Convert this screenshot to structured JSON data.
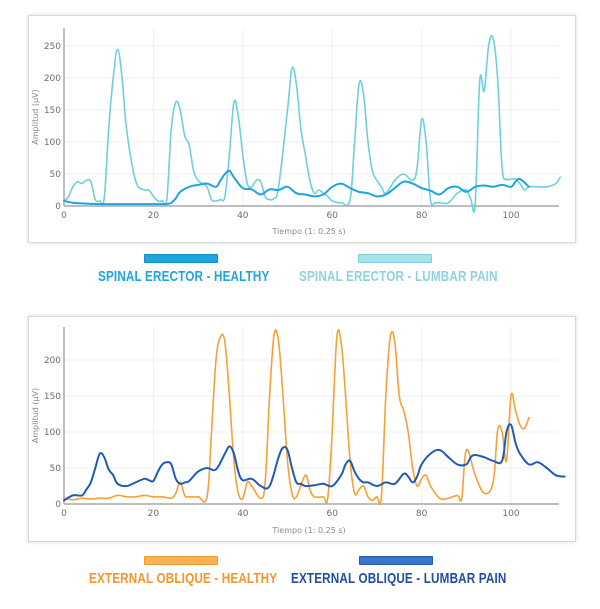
{
  "chart_data": [
    {
      "type": "line",
      "title": "",
      "xlabel": "Tiempo (1: 0.25 s)",
      "ylabel": "Amplitud (µV)",
      "xlim": [
        0,
        112
      ],
      "ylim": [
        0,
        270
      ],
      "xticks": [
        0,
        20,
        40,
        60,
        80,
        100
      ],
      "yticks": [
        0,
        50,
        100,
        150,
        200,
        250
      ],
      "grid": true,
      "legend_position": "bottom",
      "series": [
        {
          "name": "SPINAL ERECTOR - HEALTHY",
          "color": "#1ea4e0",
          "x": [
            0,
            2,
            4,
            8,
            12,
            16,
            20,
            22,
            23,
            24,
            25,
            26,
            28,
            30,
            32,
            34,
            35,
            36,
            37,
            38,
            40,
            42,
            44,
            46,
            48,
            50,
            52,
            54,
            56,
            58,
            60,
            62,
            64,
            66,
            68,
            70,
            72,
            74,
            76,
            78,
            80,
            82,
            84,
            86,
            88,
            90,
            92,
            94,
            96,
            98,
            100,
            101,
            102,
            104
          ],
          "values": [
            8,
            5,
            4,
            3,
            3,
            3,
            3,
            3,
            3,
            5,
            12,
            22,
            30,
            33,
            35,
            30,
            40,
            50,
            55,
            45,
            28,
            26,
            18,
            26,
            25,
            30,
            20,
            18,
            15,
            18,
            30,
            35,
            28,
            22,
            20,
            15,
            18,
            28,
            38,
            35,
            28,
            24,
            18,
            28,
            30,
            22,
            30,
            32,
            30,
            33,
            30,
            38,
            42,
            30
          ]
        },
        {
          "name": "SPINAL ERECTOR - LUMBAR PAIN",
          "color": "#6fd0dd",
          "x": [
            0,
            1,
            2,
            3,
            4,
            5,
            6,
            7,
            8,
            9,
            10,
            11,
            12,
            13,
            14,
            16,
            18,
            19,
            20,
            21,
            22,
            23,
            24,
            25,
            26,
            27,
            28,
            29,
            30,
            31,
            32,
            33,
            34,
            35,
            36,
            37,
            38,
            39,
            40,
            41,
            42,
            43,
            44,
            45,
            46,
            47,
            48,
            50,
            51,
            52,
            53,
            54,
            55,
            56,
            57,
            58,
            59,
            60,
            62,
            64,
            65,
            66,
            67,
            68,
            69,
            70,
            71,
            72,
            74,
            76,
            78,
            79,
            80,
            81,
            82,
            83,
            84,
            86,
            88,
            90,
            91,
            92,
            93,
            94,
            95,
            96,
            97,
            98,
            99,
            100,
            101,
            102,
            103,
            104,
            106,
            108,
            110,
            111
          ],
          "values": [
            8,
            15,
            30,
            38,
            35,
            40,
            38,
            10,
            8,
            12,
            120,
            200,
            245,
            200,
            120,
            40,
            25,
            25,
            15,
            8,
            8,
            10,
            120,
            162,
            150,
            110,
            95,
            55,
            40,
            35,
            30,
            10,
            8,
            10,
            15,
            80,
            162,
            140,
            80,
            35,
            30,
            40,
            38,
            15,
            10,
            12,
            30,
            150,
            215,
            190,
            120,
            80,
            40,
            20,
            25,
            20,
            15,
            8,
            5,
            10,
            100,
            190,
            175,
            100,
            55,
            40,
            30,
            20,
            40,
            50,
            40,
            60,
            135,
            100,
            10,
            5,
            5,
            5,
            20,
            25,
            10,
            5,
            195,
            180,
            250,
            262,
            200,
            60,
            42,
            42,
            42,
            35,
            25,
            30,
            30,
            30,
            35,
            45
          ]
        }
      ]
    },
    {
      "type": "line",
      "title": "",
      "xlabel": "Tiempo (1: 0.25 s)",
      "ylabel": "Amplitud (µV)",
      "xlim": [
        0,
        112
      ],
      "ylim": [
        0,
        240
      ],
      "xticks": [
        0,
        20,
        40,
        60,
        80,
        100
      ],
      "yticks": [
        0,
        50,
        100,
        150,
        200
      ],
      "grid": true,
      "legend_position": "bottom",
      "series": [
        {
          "name": "EXTERNAL OBLIQUE - HEALTHY",
          "color": "#f7a035",
          "x": [
            0,
            2,
            4,
            6,
            8,
            10,
            12,
            14,
            16,
            18,
            20,
            22,
            24,
            25,
            26,
            27,
            28,
            30,
            32,
            33,
            34,
            35,
            36,
            37,
            38,
            39,
            40,
            41,
            42,
            44,
            45,
            46,
            47,
            48,
            49,
            50,
            51,
            52,
            54,
            55,
            56,
            58,
            59,
            60,
            61,
            62,
            63,
            64,
            65,
            66,
            67,
            68,
            69,
            70,
            71,
            72,
            73,
            74,
            75,
            76,
            77,
            78,
            79,
            80,
            81,
            82,
            84,
            86,
            88,
            89,
            90,
            92,
            94,
            96,
            97,
            98,
            99,
            100,
            101,
            102,
            103,
            104
          ],
          "values": [
            8,
            6,
            8,
            7,
            8,
            8,
            12,
            10,
            10,
            12,
            10,
            10,
            8,
            15,
            30,
            12,
            10,
            10,
            10,
            100,
            200,
            232,
            225,
            150,
            60,
            15,
            8,
            30,
            25,
            8,
            30,
            150,
            235,
            225,
            150,
            60,
            15,
            10,
            40,
            20,
            10,
            10,
            8,
            100,
            230,
            225,
            150,
            60,
            15,
            20,
            25,
            10,
            5,
            10,
            10,
            150,
            232,
            225,
            150,
            130,
            100,
            50,
            25,
            35,
            40,
            25,
            8,
            8,
            12,
            8,
            75,
            40,
            15,
            30,
            102,
            100,
            60,
            150,
            130,
            110,
            105,
            120
          ]
        },
        {
          "name": "EXTERNAL OBLIQUE - LUMBAR PAIN",
          "color": "#1f5bb5",
          "x": [
            0,
            2,
            4,
            5,
            6,
            7,
            8,
            9,
            10,
            11,
            12,
            14,
            16,
            18,
            19,
            20,
            21,
            22,
            23,
            24,
            25,
            26,
            27,
            28,
            30,
            32,
            34,
            36,
            37,
            38,
            39,
            40,
            42,
            44,
            46,
            48,
            49,
            50,
            51,
            52,
            53,
            54,
            56,
            58,
            60,
            62,
            63,
            64,
            65,
            66,
            67,
            68,
            70,
            72,
            74,
            76,
            77,
            78,
            79,
            80,
            82,
            84,
            86,
            88,
            90,
            91,
            92,
            94,
            96,
            98,
            99,
            100,
            101,
            102,
            104,
            106,
            108,
            110,
            112
          ],
          "values": [
            5,
            12,
            12,
            20,
            30,
            50,
            70,
            65,
            48,
            40,
            28,
            25,
            30,
            35,
            33,
            32,
            45,
            55,
            58,
            55,
            35,
            28,
            30,
            32,
            45,
            50,
            48,
            70,
            80,
            70,
            45,
            33,
            35,
            25,
            25,
            65,
            78,
            75,
            50,
            30,
            28,
            25,
            26,
            28,
            25,
            40,
            55,
            60,
            45,
            35,
            30,
            30,
            25,
            30,
            28,
            42,
            38,
            30,
            38,
            55,
            70,
            75,
            65,
            55,
            55,
            65,
            68,
            65,
            60,
            60,
            100,
            110,
            85,
            70,
            55,
            58,
            50,
            40,
            38
          ]
        }
      ]
    }
  ],
  "charts": [
    {
      "ylabel": "Amplitud (µV)",
      "xlabel": "Tiempo (1: 0.25 s)",
      "legend": [
        {
          "label": "SPINAL ERECTOR - HEALTHY",
          "color": "#1ea4e0"
        },
        {
          "label": "SPINAL ERECTOR - LUMBAR PAIN",
          "color": "#8fd9e4"
        }
      ]
    },
    {
      "ylabel": "Amplitud (µV)",
      "xlabel": "Tiempo (1: 0.25 s)",
      "legend": [
        {
          "label": "EXTERNAL OBLIQUE - HEALTHY",
          "color": "#f7a035"
        },
        {
          "label": "EXTERNAL OBLIQUE - LUMBAR PAIN",
          "color": "#1f5bb5"
        }
      ]
    }
  ]
}
